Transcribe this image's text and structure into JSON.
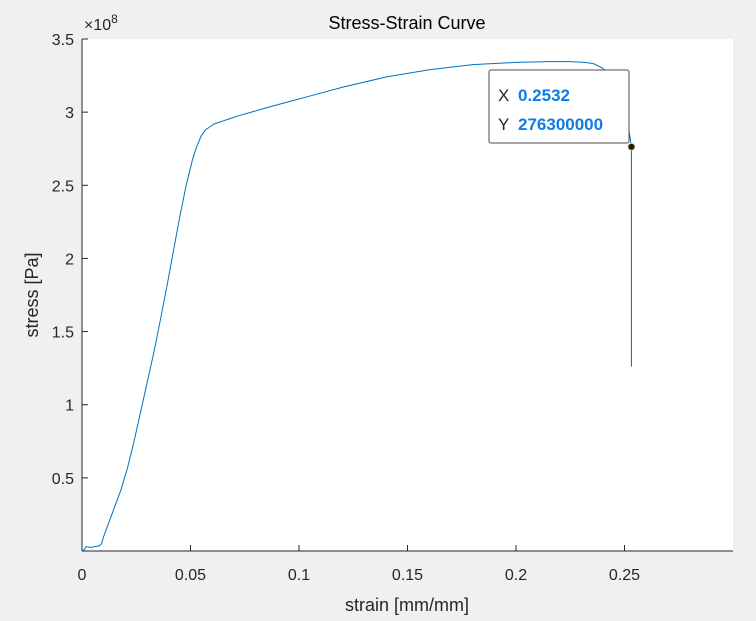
{
  "chart_data": {
    "type": "line",
    "title": "Stress-Strain Curve",
    "xlabel": "strain [mm/mm]",
    "ylabel": "stress [Pa]",
    "xlim": [
      0,
      0.3
    ],
    "ylim": [
      0,
      350000000
    ],
    "x_ticks": [
      0,
      0.05,
      0.1,
      0.15,
      0.2,
      0.25
    ],
    "x_tick_labels": [
      "0",
      "0.05",
      "0.1",
      "0.15",
      "0.2",
      "0.25"
    ],
    "y_ticks": [
      50000000,
      100000000,
      150000000,
      200000000,
      250000000,
      300000000,
      350000000
    ],
    "y_tick_labels": [
      "0.5",
      "1",
      "1.5",
      "2",
      "2.5",
      "3",
      "3.5"
    ],
    "y_exponent_base": "×10",
    "y_exponent": "8",
    "grid": false,
    "line_color": "#0072bd",
    "series": [
      {
        "x": [
          0,
          0.001,
          0.002,
          0.004,
          0.006,
          0.008,
          0.009,
          0.01,
          0.012,
          0.015,
          0.018,
          0.021,
          0.024,
          0.027,
          0.03,
          0.033,
          0.036,
          0.039,
          0.042,
          0.045,
          0.048,
          0.051,
          0.053,
          0.055,
          0.057,
          0.059,
          0.061,
          0.063,
          0.065,
          0.068,
          0.072,
          0.078,
          0.085,
          0.095,
          0.105,
          0.12,
          0.14,
          0.16,
          0.18,
          0.2,
          0.215,
          0.225,
          0.232,
          0.236,
          0.24,
          0.244,
          0.247,
          0.25,
          0.252,
          0.2532,
          0.2532,
          0.2532
        ],
        "y": [
          0,
          1000000,
          3000000,
          2500000,
          3000000,
          3500000,
          5000000,
          10000000,
          18000000,
          30000000,
          42000000,
          57000000,
          75000000,
          95000000,
          115000000,
          135000000,
          157000000,
          180000000,
          204000000,
          228000000,
          250000000,
          268000000,
          277000000,
          284000000,
          288000000,
          290000000,
          292000000,
          293000000,
          294000000,
          295500000,
          297500000,
          300000000,
          303000000,
          307000000,
          311000000,
          317000000,
          324000000,
          329000000,
          332500000,
          334000000,
          334500000,
          334500000,
          334000000,
          333000000,
          330000000,
          324000000,
          314000000,
          300000000,
          288000000,
          276300000,
          200000000,
          126000000
        ]
      }
    ],
    "datatip": {
      "x_key": "X",
      "x_value": "0.2532",
      "y_key": "Y",
      "y_value": "276300000",
      "x": 0.2532,
      "y": 276300000,
      "value_color": "#0e7ce6"
    }
  }
}
